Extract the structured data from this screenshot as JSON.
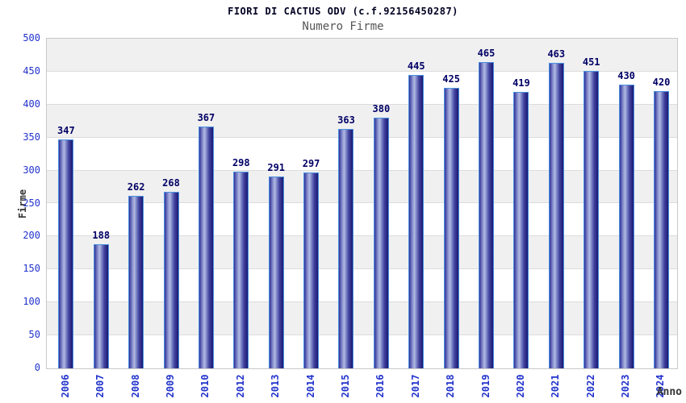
{
  "chart_data": {
    "type": "bar",
    "title": "FIORI DI CACTUS ODV (c.f.92156450287)",
    "subtitle": "Numero Firme",
    "xlabel": "Anno",
    "ylabel": "Firme",
    "categories": [
      "2006",
      "2007",
      "2008",
      "2009",
      "2010",
      "2012",
      "2013",
      "2014",
      "2015",
      "2016",
      "2017",
      "2018",
      "2019",
      "2020",
      "2021",
      "2022",
      "2023",
      "2024"
    ],
    "values": [
      347,
      188,
      262,
      268,
      367,
      298,
      291,
      297,
      363,
      380,
      445,
      425,
      465,
      419,
      463,
      451,
      430,
      420
    ],
    "ylim": [
      0,
      500
    ],
    "ytick_step": 50,
    "yticks": [
      0,
      50,
      100,
      150,
      200,
      250,
      300,
      350,
      400,
      450,
      500
    ],
    "grid": "alternating horizontal bands every 50 units",
    "legend": "none",
    "colors": {
      "bar_border": "#4a90e0",
      "bar_gradient": [
        "#32329a",
        "#8189c8",
        "#b2bae4",
        "#7f88c8",
        "#42429e",
        "#1a1a72"
      ],
      "tick_label": "#2233cc",
      "value_label": "#000066",
      "band_alt": "#f0f0f0",
      "band_main": "#ffffff",
      "grid_line": "#dcdcdc",
      "plot_border": "#c9c9c9",
      "title_color": "#000022",
      "subtitle_color": "#555555",
      "axis_label_color": "#333333"
    }
  }
}
